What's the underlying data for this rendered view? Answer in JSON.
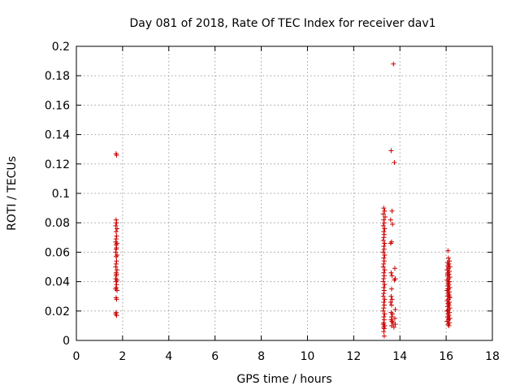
{
  "chart_data": {
    "type": "scatter",
    "title": "Day 081 of 2018, Rate Of TEC Index for receiver dav1",
    "xlabel": "GPS time / hours",
    "ylabel": "ROTI / TECUs",
    "xlim": [
      0,
      18
    ],
    "ylim": [
      0,
      0.2
    ],
    "xticks": [
      0,
      2,
      4,
      6,
      8,
      10,
      12,
      14,
      16,
      18
    ],
    "yticks": [
      0,
      0.02,
      0.04,
      0.06,
      0.08,
      0.1,
      0.12,
      0.14,
      0.16,
      0.18,
      0.2
    ],
    "xtick_labels": [
      "0",
      "2",
      "4",
      "6",
      "8",
      "10",
      "12",
      "14",
      "16",
      "18"
    ],
    "ytick_labels": [
      "0",
      "0.02",
      "0.04",
      "0.06",
      "0.08",
      "0.1",
      "0.12",
      "0.14",
      "0.16",
      "0.18",
      "0.2"
    ],
    "grid": true,
    "marker": "plus",
    "marker_color": "#cc0000",
    "series": [
      {
        "points": [
          [
            1.72,
            0.127
          ],
          [
            1.74,
            0.126
          ],
          [
            1.72,
            0.082
          ],
          [
            1.74,
            0.08
          ],
          [
            1.7,
            0.078
          ],
          [
            1.76,
            0.076
          ],
          [
            1.72,
            0.074
          ],
          [
            1.74,
            0.071
          ],
          [
            1.72,
            0.069
          ],
          [
            1.7,
            0.067
          ],
          [
            1.76,
            0.066
          ],
          [
            1.72,
            0.065
          ],
          [
            1.74,
            0.063
          ],
          [
            1.72,
            0.062
          ],
          [
            1.7,
            0.06
          ],
          [
            1.76,
            0.058
          ],
          [
            1.72,
            0.057
          ],
          [
            1.74,
            0.054
          ],
          [
            1.72,
            0.052
          ],
          [
            1.7,
            0.05
          ],
          [
            1.76,
            0.048
          ],
          [
            1.72,
            0.046
          ],
          [
            1.74,
            0.045
          ],
          [
            1.72,
            0.044
          ],
          [
            1.7,
            0.042
          ],
          [
            1.76,
            0.041
          ],
          [
            1.72,
            0.04
          ],
          [
            1.74,
            0.038
          ],
          [
            1.72,
            0.036
          ],
          [
            1.7,
            0.035
          ],
          [
            1.76,
            0.034
          ],
          [
            1.72,
            0.029
          ],
          [
            1.74,
            0.028
          ],
          [
            1.72,
            0.019
          ],
          [
            1.7,
            0.018
          ],
          [
            1.74,
            0.017
          ],
          [
            13.72,
            0.188
          ],
          [
            13.62,
            0.129
          ],
          [
            13.76,
            0.121
          ],
          [
            13.3,
            0.09
          ],
          [
            13.34,
            0.088
          ],
          [
            13.28,
            0.086
          ],
          [
            13.36,
            0.084
          ],
          [
            13.3,
            0.082
          ],
          [
            13.32,
            0.08
          ],
          [
            13.28,
            0.078
          ],
          [
            13.34,
            0.076
          ],
          [
            13.3,
            0.074
          ],
          [
            13.32,
            0.072
          ],
          [
            13.3,
            0.07
          ],
          [
            13.28,
            0.068
          ],
          [
            13.34,
            0.066
          ],
          [
            13.3,
            0.064
          ],
          [
            13.32,
            0.062
          ],
          [
            13.28,
            0.06
          ],
          [
            13.34,
            0.058
          ],
          [
            13.3,
            0.056
          ],
          [
            13.32,
            0.054
          ],
          [
            13.3,
            0.052
          ],
          [
            13.28,
            0.05
          ],
          [
            13.34,
            0.048
          ],
          [
            13.3,
            0.046
          ],
          [
            13.32,
            0.044
          ],
          [
            13.3,
            0.042
          ],
          [
            13.28,
            0.04
          ],
          [
            13.34,
            0.038
          ],
          [
            13.3,
            0.036
          ],
          [
            13.32,
            0.034
          ],
          [
            13.3,
            0.032
          ],
          [
            13.28,
            0.03
          ],
          [
            13.34,
            0.028
          ],
          [
            13.3,
            0.026
          ],
          [
            13.32,
            0.024
          ],
          [
            13.3,
            0.022
          ],
          [
            13.28,
            0.02
          ],
          [
            13.34,
            0.018
          ],
          [
            13.3,
            0.016
          ],
          [
            13.32,
            0.014
          ],
          [
            13.3,
            0.012
          ],
          [
            13.28,
            0.011
          ],
          [
            13.34,
            0.01
          ],
          [
            13.3,
            0.009
          ],
          [
            13.32,
            0.008
          ],
          [
            13.3,
            0.006
          ],
          [
            13.32,
            0.003
          ],
          [
            13.66,
            0.088
          ],
          [
            13.6,
            0.082
          ],
          [
            13.68,
            0.079
          ],
          [
            13.64,
            0.067
          ],
          [
            13.6,
            0.066
          ],
          [
            13.78,
            0.049
          ],
          [
            13.62,
            0.046
          ],
          [
            13.66,
            0.044
          ],
          [
            13.8,
            0.042
          ],
          [
            13.76,
            0.041
          ],
          [
            13.64,
            0.035
          ],
          [
            13.62,
            0.03
          ],
          [
            13.66,
            0.028
          ],
          [
            13.6,
            0.026
          ],
          [
            13.64,
            0.024
          ],
          [
            13.8,
            0.021
          ],
          [
            13.62,
            0.019
          ],
          [
            13.68,
            0.018
          ],
          [
            13.64,
            0.016
          ],
          [
            13.78,
            0.015
          ],
          [
            13.62,
            0.014
          ],
          [
            13.66,
            0.013
          ],
          [
            13.7,
            0.012
          ],
          [
            13.8,
            0.011
          ],
          [
            13.64,
            0.01
          ],
          [
            13.74,
            0.009
          ],
          [
            16.08,
            0.061
          ],
          [
            16.1,
            0.056
          ],
          [
            16.14,
            0.054
          ],
          [
            16.06,
            0.053
          ],
          [
            16.12,
            0.052
          ],
          [
            16.08,
            0.051
          ],
          [
            16.16,
            0.05
          ],
          [
            16.1,
            0.049
          ],
          [
            16.04,
            0.048
          ],
          [
            16.14,
            0.047
          ],
          [
            16.08,
            0.046
          ],
          [
            16.12,
            0.045
          ],
          [
            16.06,
            0.044
          ],
          [
            16.16,
            0.043
          ],
          [
            16.1,
            0.042
          ],
          [
            16.04,
            0.041
          ],
          [
            16.14,
            0.04
          ],
          [
            16.08,
            0.039
          ],
          [
            16.12,
            0.038
          ],
          [
            16.06,
            0.037
          ],
          [
            16.16,
            0.036
          ],
          [
            16.1,
            0.035
          ],
          [
            16.04,
            0.034
          ],
          [
            16.14,
            0.033
          ],
          [
            16.08,
            0.032
          ],
          [
            16.12,
            0.031
          ],
          [
            16.06,
            0.03
          ],
          [
            16.16,
            0.029
          ],
          [
            16.1,
            0.028
          ],
          [
            16.04,
            0.027
          ],
          [
            16.14,
            0.026
          ],
          [
            16.08,
            0.025
          ],
          [
            16.12,
            0.024
          ],
          [
            16.06,
            0.023
          ],
          [
            16.16,
            0.022
          ],
          [
            16.1,
            0.021
          ],
          [
            16.04,
            0.02
          ],
          [
            16.14,
            0.019
          ],
          [
            16.08,
            0.018
          ],
          [
            16.12,
            0.017
          ],
          [
            16.06,
            0.016
          ],
          [
            16.16,
            0.015
          ],
          [
            16.1,
            0.014
          ],
          [
            16.04,
            0.013
          ],
          [
            16.14,
            0.012
          ],
          [
            16.08,
            0.011
          ],
          [
            16.12,
            0.01
          ],
          [
            16.1,
            0.05
          ],
          [
            16.06,
            0.045
          ],
          [
            16.12,
            0.04
          ],
          [
            16.08,
            0.035
          ],
          [
            16.14,
            0.03
          ],
          [
            16.1,
            0.025
          ],
          [
            16.06,
            0.02
          ],
          [
            16.12,
            0.015
          ]
        ]
      }
    ]
  }
}
